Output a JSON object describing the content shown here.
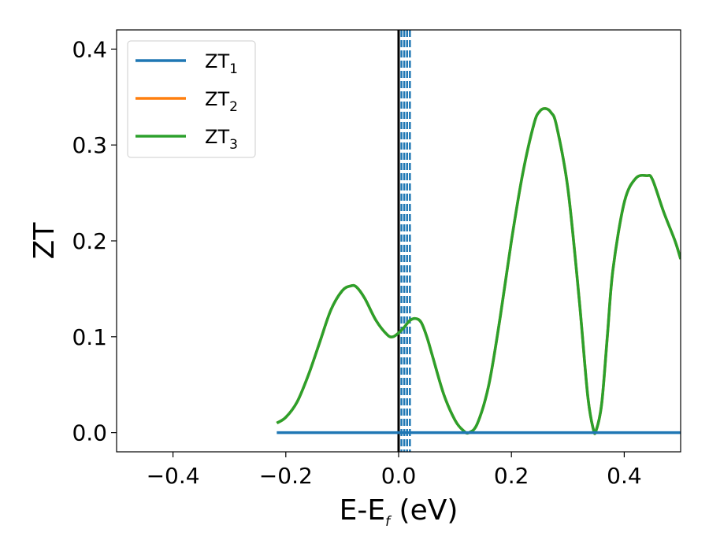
{
  "chart_data": {
    "type": "line",
    "xlabel": "E-E",
    "xlabel_sub": "f",
    "xlabel_unit": " (eV)",
    "ylabel": "ZT",
    "xlim": [
      -0.5,
      0.5
    ],
    "ylim": [
      -0.02,
      0.42
    ],
    "xticks": [
      -0.4,
      -0.2,
      0.0,
      0.2,
      0.4
    ],
    "xtick_labels": [
      "−0.4",
      "−0.2",
      "0.0",
      "0.2",
      "0.4"
    ],
    "yticks": [
      0.0,
      0.1,
      0.2,
      0.3,
      0.4
    ],
    "ytick_labels": [
      "0.0",
      "0.1",
      "0.2",
      "0.3",
      "0.4"
    ],
    "grid": false,
    "legend_position": "top-left",
    "series": [
      {
        "name": "ZT",
        "name_sub": "1",
        "color": "#1f77b4",
        "x": [
          -0.216,
          0.5
        ],
        "y": [
          0.0,
          0.0
        ]
      },
      {
        "name": "ZT",
        "name_sub": "2",
        "color": "#ff7f0e",
        "x": [
          -0.216,
          -0.2,
          -0.18,
          -0.16,
          -0.14,
          -0.12,
          -0.1,
          -0.085,
          -0.075,
          -0.06,
          -0.04,
          -0.02,
          -0.01,
          0.0,
          0.01,
          0.02,
          0.03,
          0.04,
          0.05,
          0.06,
          0.08,
          0.1,
          0.115,
          0.125,
          0.14,
          0.16,
          0.18,
          0.2,
          0.22,
          0.24,
          0.25,
          0.26,
          0.27,
          0.28,
          0.3,
          0.32,
          0.335,
          0.345,
          0.35,
          0.36,
          0.37,
          0.38,
          0.4,
          0.42,
          0.44,
          0.45,
          0.47,
          0.49,
          0.5
        ],
        "y": [
          0.01,
          0.016,
          0.032,
          0.06,
          0.094,
          0.128,
          0.148,
          0.153,
          0.152,
          0.14,
          0.117,
          0.102,
          0.1,
          0.104,
          0.11,
          0.117,
          0.119,
          0.115,
          0.1,
          0.08,
          0.04,
          0.013,
          0.002,
          0.0,
          0.01,
          0.05,
          0.12,
          0.2,
          0.27,
          0.322,
          0.335,
          0.338,
          0.334,
          0.32,
          0.255,
          0.14,
          0.04,
          0.004,
          0.002,
          0.03,
          0.1,
          0.17,
          0.24,
          0.265,
          0.268,
          0.264,
          0.23,
          0.2,
          0.181
        ]
      },
      {
        "name": "ZT",
        "name_sub": "3",
        "color": "#2ca02c",
        "x": [
          -0.216,
          -0.2,
          -0.18,
          -0.16,
          -0.14,
          -0.12,
          -0.1,
          -0.085,
          -0.075,
          -0.06,
          -0.04,
          -0.02,
          -0.01,
          0.0,
          0.01,
          0.02,
          0.03,
          0.04,
          0.05,
          0.06,
          0.08,
          0.1,
          0.115,
          0.125,
          0.14,
          0.16,
          0.18,
          0.2,
          0.22,
          0.24,
          0.25,
          0.26,
          0.27,
          0.28,
          0.3,
          0.32,
          0.335,
          0.345,
          0.35,
          0.36,
          0.37,
          0.38,
          0.4,
          0.42,
          0.44,
          0.45,
          0.47,
          0.49,
          0.5
        ],
        "y": [
          0.01,
          0.016,
          0.032,
          0.06,
          0.094,
          0.128,
          0.148,
          0.153,
          0.152,
          0.14,
          0.117,
          0.102,
          0.1,
          0.104,
          0.11,
          0.117,
          0.119,
          0.115,
          0.1,
          0.08,
          0.04,
          0.013,
          0.002,
          0.0,
          0.01,
          0.05,
          0.12,
          0.2,
          0.27,
          0.322,
          0.335,
          0.338,
          0.334,
          0.32,
          0.255,
          0.14,
          0.04,
          0.004,
          0.002,
          0.03,
          0.1,
          0.17,
          0.24,
          0.265,
          0.268,
          0.264,
          0.23,
          0.2,
          0.181
        ]
      }
    ],
    "vlines": [
      {
        "x": 0.0,
        "style": "solid",
        "color": "#000000"
      },
      {
        "x": 0.005,
        "style": "dashed",
        "color": "#1f77b4"
      },
      {
        "x": 0.01,
        "style": "dashed",
        "color": "#1f77b4"
      },
      {
        "x": 0.015,
        "style": "dashed",
        "color": "#1f77b4"
      },
      {
        "x": 0.02,
        "style": "dashed",
        "color": "#1f77b4"
      }
    ]
  }
}
